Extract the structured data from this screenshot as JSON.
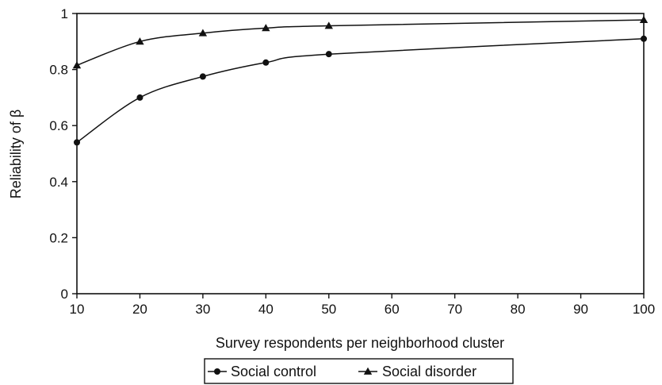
{
  "chart_data": {
    "type": "line",
    "title": "",
    "xlabel": "Survey respondents per neighborhood cluster",
    "ylabel": "Reliability of β",
    "xlim": [
      10,
      100
    ],
    "ylim": [
      0,
      1
    ],
    "x_ticks": [
      "10",
      "20",
      "30",
      "40",
      "50",
      "60",
      "70",
      "80",
      "90",
      "100"
    ],
    "y_ticks": [
      "0",
      "0.2",
      "0.4",
      "0.6",
      "0.8",
      "1"
    ],
    "grid": false,
    "legend_position": "bottom",
    "series": [
      {
        "name": "Social control",
        "marker": "circle",
        "color": "#111111",
        "x": [
          10,
          20,
          30,
          40,
          50,
          100
        ],
        "y": [
          0.54,
          0.7,
          0.775,
          0.825,
          0.855,
          0.91
        ]
      },
      {
        "name": "Social disorder",
        "marker": "triangle",
        "color": "#111111",
        "x": [
          10,
          20,
          30,
          40,
          50,
          100
        ],
        "y": [
          0.815,
          0.9,
          0.93,
          0.948,
          0.956,
          0.977
        ]
      }
    ]
  }
}
